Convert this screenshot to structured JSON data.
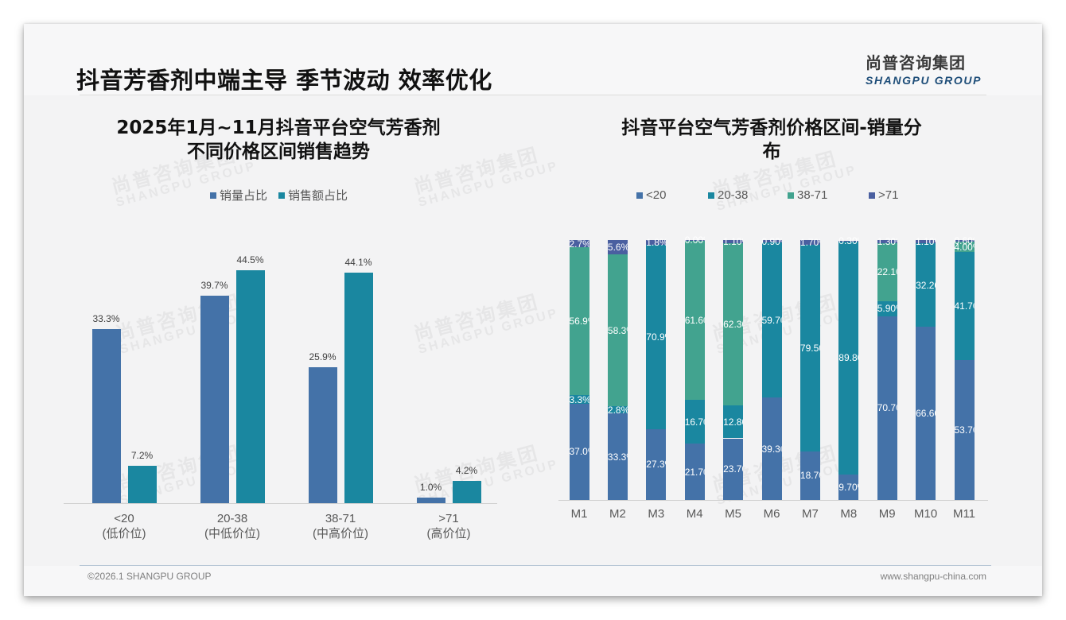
{
  "page": {
    "title": "抖音芳香剂中端主导 季节波动 效率优化",
    "logo_cn": "尚普咨询集团",
    "logo_en": "SHANGPU GROUP",
    "watermark_cn": "尚普咨询集团",
    "watermark_en": "SHANGPU GROUP",
    "footer_left": "©2026.1 SHANGPU GROUP",
    "footer_right": "www.shangpu-china.com"
  },
  "colors": {
    "lt20": "#4472a8",
    "c20_38": "#1a87a0",
    "c38_71": "#42a38f",
    "gt71": "#4a5fa0",
    "volume": "#4472a8",
    "revenue": "#1a87a0"
  },
  "chart_data": [
    {
      "type": "bar",
      "title": "2025年1月~11月抖音平台空气芳香剂\n不同价格区间销售趋势",
      "title_line1": "2025年1月~11月抖音平台空气芳香剂",
      "title_line2": "不同价格区间销售趋势",
      "categories": [
        "<20",
        "20-38",
        "38-71",
        ">71"
      ],
      "category_sublabels": [
        "(低价位)",
        "(中低价位)",
        "(中高价位)",
        "(高价位)"
      ],
      "series": [
        {
          "name": "销量占比",
          "values": [
            33.3,
            39.7,
            25.9,
            1.0
          ],
          "labels": [
            "33.3%",
            "39.7%",
            "25.9%",
            "1.0%"
          ]
        },
        {
          "name": "销售额占比",
          "values": [
            7.2,
            44.5,
            44.1,
            4.2
          ],
          "labels": [
            "7.2%",
            "44.5%",
            "44.1%",
            "4.2%"
          ]
        }
      ],
      "legend_position": "top",
      "grid": false,
      "xlabel": "",
      "ylabel": "",
      "ylim": [
        0,
        50
      ]
    },
    {
      "type": "bar",
      "stacked": true,
      "percent": true,
      "title": "抖音平台空气芳香剂价格区间-销量分布",
      "title_line1": "抖音平台空气芳香剂价格区间-销量分",
      "title_line2": "布",
      "categories": [
        "M1",
        "M2",
        "M3",
        "M4",
        "M5",
        "M6",
        "M7",
        "M8",
        "M9",
        "M10",
        "M11"
      ],
      "series": [
        {
          "name": "<20",
          "values": [
            37.0,
            33.3,
            27.3,
            21.7,
            23.7,
            39.3,
            18.7,
            9.7,
            70.7,
            66.6,
            53.7
          ],
          "labels": [
            "37.0%",
            "33.3%",
            "27.3%",
            "21.70%",
            "23.70%",
            "39.30%",
            "18.70%",
            "9.70%",
            "70.70%",
            "66.60%",
            "53.70%"
          ]
        },
        {
          "name": "20-38",
          "values": [
            3.3,
            2.8,
            70.9,
            16.7,
            12.8,
            59.7,
            79.5,
            89.8,
            5.9,
            32.2,
            41.7
          ],
          "labels": [
            "3.3%",
            "2.8%",
            "70.9%",
            "16.70%",
            "12.80%",
            "59.70%",
            "79.50%",
            "89.80%",
            "5.90%",
            "32.20%",
            "41.70%"
          ]
        },
        {
          "name": "38-71",
          "values": [
            56.9,
            58.3,
            0.0,
            61.6,
            62.3,
            0.0,
            0.0,
            0.0,
            22.1,
            0.0,
            4.0
          ],
          "labels": [
            "56.9%",
            "58.3%",
            "",
            "61.60%",
            "62.30%",
            "",
            "",
            "",
            "22.10%",
            "",
            "4.00%"
          ]
        },
        {
          "name": ">71",
          "values": [
            2.7,
            5.6,
            1.8,
            0.0,
            1.1,
            0.9,
            1.7,
            0.3,
            1.3,
            1.1,
            0.6
          ],
          "labels": [
            "2.7%",
            "5.6%",
            "1.8%",
            "0.00%",
            "1.10%",
            "0.90%",
            "1.70%",
            "0.30%",
            "1.30%",
            "1.10%",
            "0.60%"
          ]
        }
      ],
      "legend_position": "top",
      "grid": false,
      "xlabel": "",
      "ylabel": "",
      "ylim": [
        0,
        100
      ]
    }
  ]
}
